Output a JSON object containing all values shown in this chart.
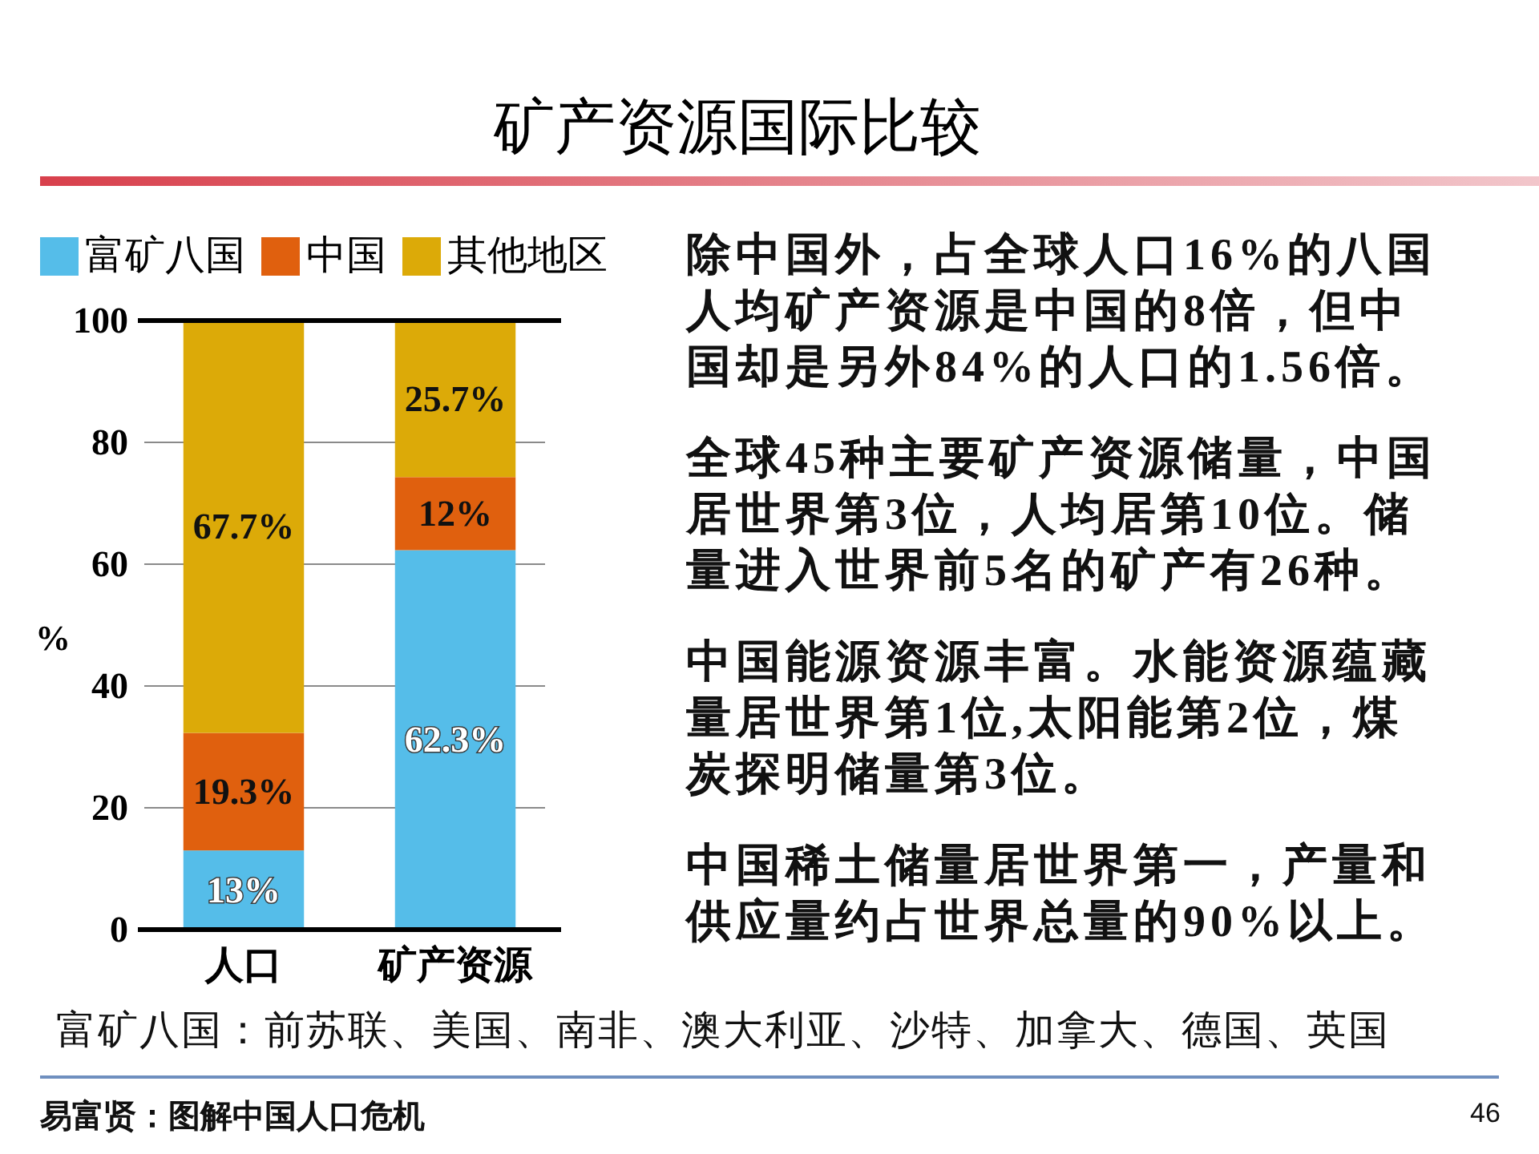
{
  "chart_data": {
    "type": "bar",
    "stacked": true,
    "title": "矿产资源国际比较",
    "categories": [
      "人口",
      "矿产资源"
    ],
    "series": [
      {
        "name": "富矿八国",
        "color": "#55bde9",
        "values": [
          13,
          62.3
        ],
        "value_labels": [
          "13%",
          "62.3%"
        ]
      },
      {
        "name": "中国",
        "color": "#e0600e",
        "values": [
          19.3,
          12
        ],
        "value_labels": [
          "19.3%",
          "12%"
        ]
      },
      {
        "name": "其他地区",
        "color": "#dcaa08",
        "values": [
          67.7,
          25.7
        ],
        "value_labels": [
          "67.7%",
          "25.7%"
        ]
      }
    ],
    "ylabel": "%",
    "ylim": [
      0,
      100
    ],
    "yticks": [
      0,
      20,
      40,
      60,
      80,
      100
    ],
    "grid": "y",
    "legend": "top",
    "annotations": [
      "除中国外，占全球人口16%的八国人均矿产资源是中国的8倍，但中国却是另外84%的人口的1.56倍。",
      "全球45种主要矿产资源储量，中国居世界第3位，人均居第10位。储量进入世界前5名的矿产有26种。",
      "中国能源资源丰富。水能资源蕴藏量居世界第1位,太阳能第2位，煤炭探明储量第3位。",
      "中国稀土储量居世界第一，产量和供应量约占世界总量的90%以上。",
      "富矿八国：前苏联、美国、南非、澳大利亚、沙特、加拿大、德国、英国",
      "易富贤：图解中国人口危机",
      "46"
    ]
  }
}
